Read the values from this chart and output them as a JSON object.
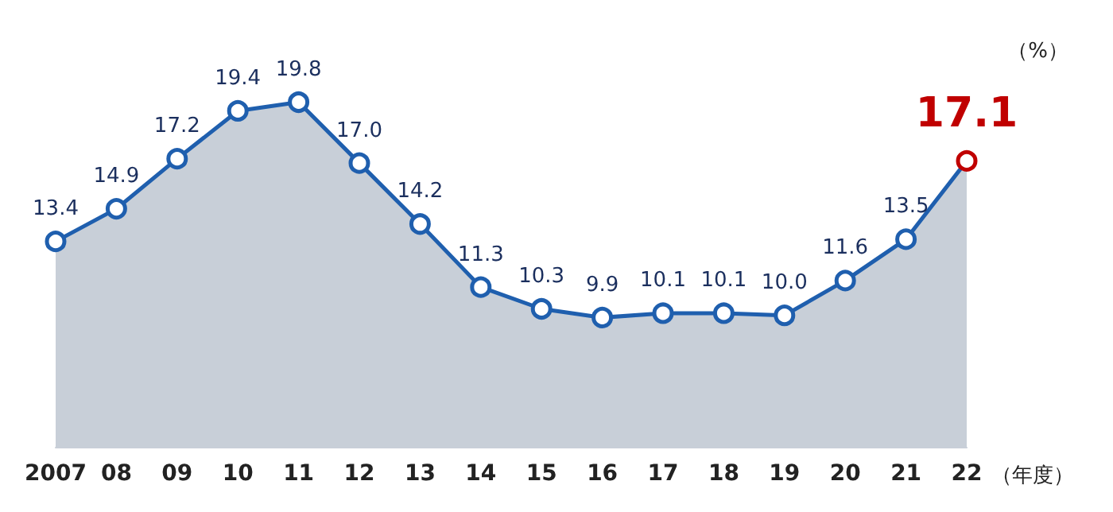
{
  "chart_data": {
    "type": "area",
    "xlabel": "（年度）",
    "ylabel": "（%）",
    "categories": [
      "2007",
      "08",
      "09",
      "10",
      "11",
      "12",
      "13",
      "14",
      "15",
      "16",
      "17",
      "18",
      "19",
      "20",
      "21",
      "22"
    ],
    "series": [
      {
        "color": "#1f5fae",
        "values": [
          13.4,
          14.9,
          17.2,
          19.4,
          19.8,
          17.0,
          14.2,
          11.3,
          10.3,
          9.9,
          10.1,
          10.1,
          10.0,
          11.6,
          13.5,
          17.1
        ],
        "value_labels": [
          "13.4",
          "14.9",
          "17.2",
          "19.4",
          "19.8",
          "17.0",
          "14.2",
          "11.3",
          "10.3",
          "9.9",
          "10.1",
          "10.1",
          "10.0",
          "11.6",
          "13.5",
          "17.1"
        ],
        "colors": [
          "#1f5fae",
          "#1f5fae",
          "#1f5fae",
          "#1f5fae",
          "#1f5fae",
          "#1f5fae",
          "#1f5fae",
          "#1f5fae",
          "#1f5fae",
          "#1f5fae",
          "#1f5fae",
          "#1f5fae",
          "#1f5fae",
          "#1f5fae",
          "#1f5fae",
          "#c00000"
        ]
      }
    ],
    "tick_labels": "x",
    "marker": "circle"
  }
}
